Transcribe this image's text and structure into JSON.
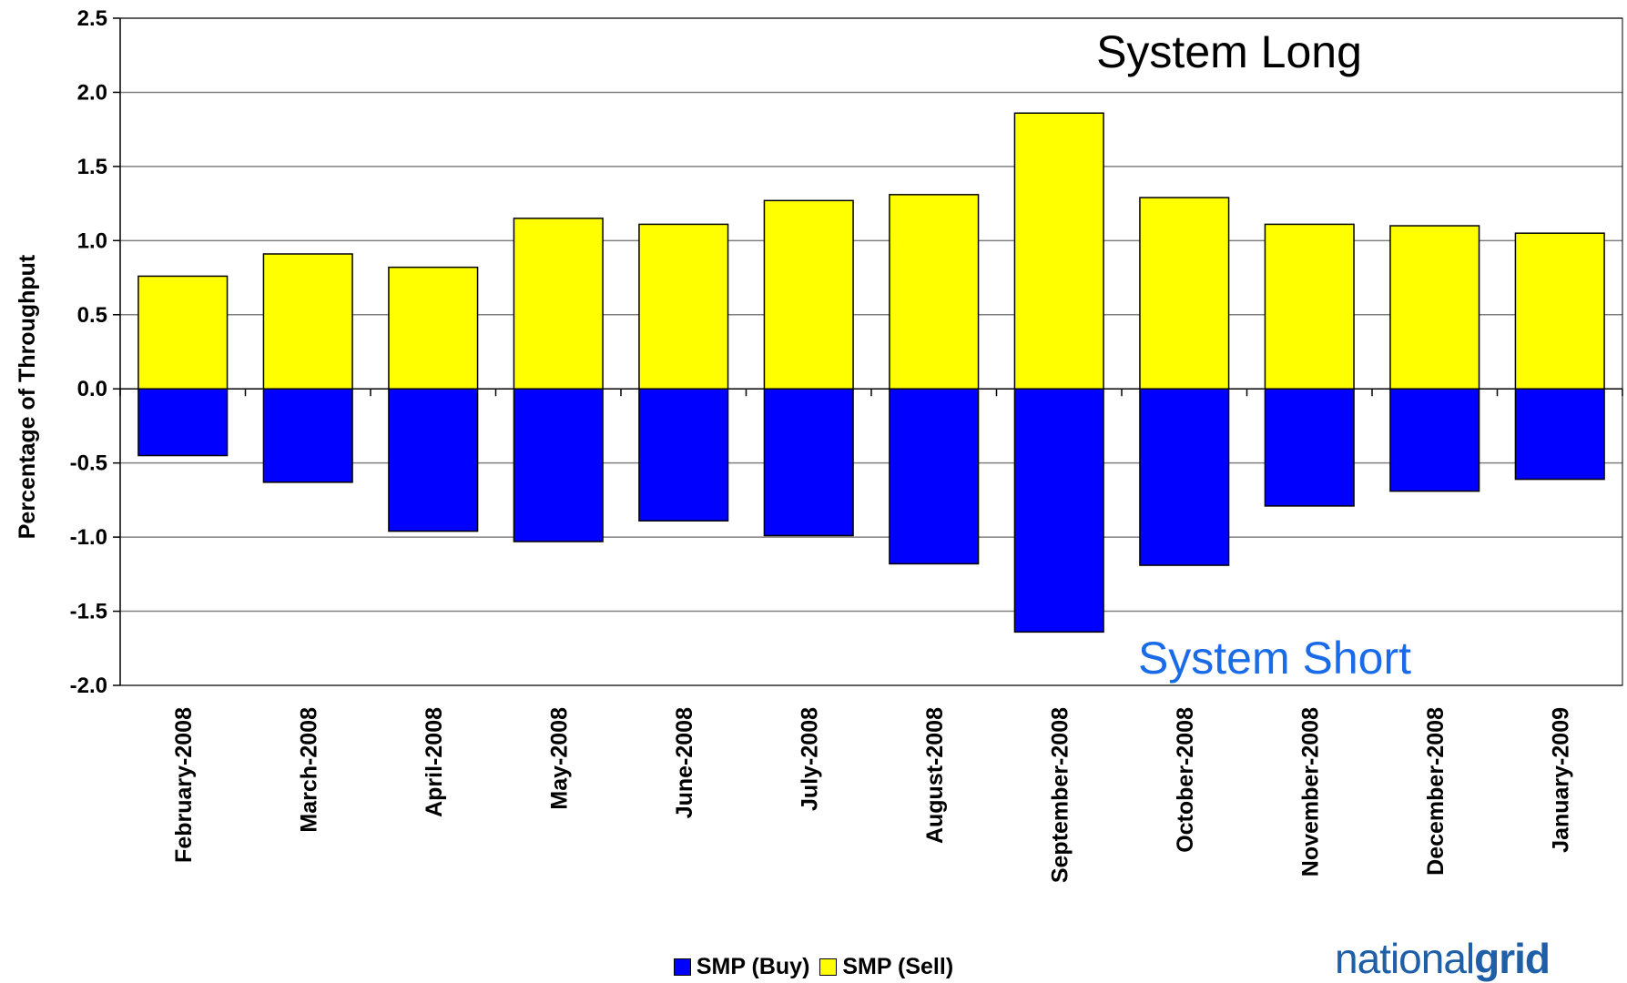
{
  "chart_data": {
    "type": "bar",
    "stacked": true,
    "categories": [
      "February-2008",
      "March-2008",
      "April-2008",
      "May-2008",
      "June-2008",
      "July-2008",
      "August-2008",
      "September-2008",
      "October-2008",
      "November-2008",
      "December-2008",
      "January-2009"
    ],
    "series": [
      {
        "name": "SMP (Buy)",
        "color": "#0000ff",
        "values": [
          -0.45,
          -0.63,
          -0.96,
          -1.03,
          -0.89,
          -0.99,
          -1.18,
          -1.64,
          -1.19,
          -0.79,
          -0.69,
          -0.61
        ]
      },
      {
        "name": "SMP (Sell)",
        "color": "#ffff00",
        "values": [
          0.76,
          0.91,
          0.82,
          1.15,
          1.11,
          1.27,
          1.31,
          1.86,
          1.29,
          1.11,
          1.1,
          1.05
        ]
      }
    ],
    "ylabel": "Percentage of Throughput",
    "ylim": [
      -2.0,
      2.5
    ],
    "yticks": [
      "2.5",
      "2.0",
      "1.5",
      "1.0",
      "0.5",
      "0.0",
      "-0.5",
      "-1.0",
      "-1.5",
      "-2.0"
    ],
    "grid": true,
    "legend_position": "bottom",
    "annotations": {
      "long": "System Long",
      "short": "System Short"
    }
  },
  "logo": {
    "part1": "national",
    "part2": "grid"
  }
}
